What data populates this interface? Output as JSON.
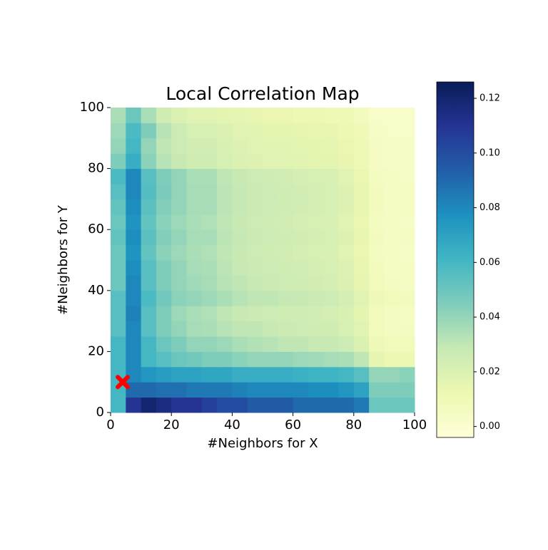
{
  "chart_data": {
    "type": "heatmap",
    "title": "Local Correlation Map",
    "x_label": "#Neighbors for X",
    "y_label": "#Neighbors for Y",
    "xlim": [
      0,
      100
    ],
    "ylim": [
      0,
      100
    ],
    "xticks": [
      0,
      20,
      40,
      60,
      80,
      100
    ],
    "yticks": [
      0,
      20,
      40,
      60,
      80,
      100
    ],
    "xbins": [
      0,
      5,
      10,
      15,
      20,
      25,
      30,
      35,
      40,
      45,
      50,
      55,
      60,
      65,
      70,
      75,
      80,
      85,
      90,
      95,
      100
    ],
    "ybins": [
      0,
      5,
      10,
      15,
      20,
      25,
      30,
      35,
      40,
      45,
      50,
      55,
      60,
      65,
      70,
      75,
      80,
      85,
      90,
      95,
      100
    ],
    "colormap": "YlGnBu",
    "clim": [
      -0.004,
      0.126
    ],
    "cticks": [
      {
        "value": 0,
        "label": "0.00"
      },
      {
        "value": 0.02,
        "label": "0.02"
      },
      {
        "value": 0.04,
        "label": "0.04"
      },
      {
        "value": 0.06,
        "label": "0.06"
      },
      {
        "value": 0.08,
        "label": "0.08"
      },
      {
        "value": 0.1,
        "label": "0.10"
      },
      {
        "value": 0.12,
        "label": "0.12"
      }
    ],
    "z": [
      [
        0.06,
        0.11,
        0.12,
        0.115,
        0.11,
        0.11,
        0.105,
        0.1,
        0.1,
        0.095,
        0.095,
        0.095,
        0.09,
        0.09,
        0.09,
        0.09,
        0.085,
        0.05,
        0.05,
        0.05
      ],
      [
        0.06,
        0.09,
        0.09,
        0.088,
        0.088,
        0.085,
        0.085,
        0.085,
        0.082,
        0.08,
        0.08,
        0.08,
        0.08,
        0.078,
        0.078,
        0.075,
        0.07,
        0.045,
        0.045,
        0.045
      ],
      [
        0.06,
        0.08,
        0.075,
        0.072,
        0.07,
        0.07,
        0.068,
        0.068,
        0.065,
        0.065,
        0.065,
        0.065,
        0.063,
        0.062,
        0.062,
        0.06,
        0.055,
        0.04,
        0.04,
        0.042
      ],
      [
        0.06,
        0.08,
        0.06,
        0.055,
        0.05,
        0.048,
        0.045,
        0.045,
        0.042,
        0.04,
        0.04,
        0.04,
        0.038,
        0.037,
        0.036,
        0.035,
        0.03,
        0.015,
        0.012,
        0.012
      ],
      [
        0.06,
        0.08,
        0.06,
        0.05,
        0.045,
        0.04,
        0.04,
        0.038,
        0.035,
        0.033,
        0.032,
        0.03,
        0.03,
        0.028,
        0.028,
        0.026,
        0.02,
        0.01,
        0.008,
        0.008
      ],
      [
        0.055,
        0.08,
        0.055,
        0.045,
        0.04,
        0.036,
        0.035,
        0.032,
        0.03,
        0.03,
        0.028,
        0.027,
        0.026,
        0.025,
        0.025,
        0.022,
        0.018,
        0.008,
        0.006,
        0.006
      ],
      [
        0.055,
        0.082,
        0.055,
        0.045,
        0.038,
        0.035,
        0.034,
        0.03,
        0.028,
        0.027,
        0.026,
        0.025,
        0.025,
        0.024,
        0.023,
        0.021,
        0.016,
        0.008,
        0.006,
        0.005
      ],
      [
        0.055,
        0.08,
        0.058,
        0.048,
        0.042,
        0.04,
        0.038,
        0.035,
        0.032,
        0.03,
        0.03,
        0.029,
        0.028,
        0.027,
        0.026,
        0.023,
        0.018,
        0.01,
        0.008,
        0.007
      ],
      [
        0.05,
        0.08,
        0.055,
        0.045,
        0.04,
        0.037,
        0.036,
        0.032,
        0.03,
        0.028,
        0.027,
        0.026,
        0.025,
        0.024,
        0.023,
        0.02,
        0.015,
        0.008,
        0.006,
        0.005
      ],
      [
        0.05,
        0.078,
        0.055,
        0.045,
        0.04,
        0.036,
        0.035,
        0.031,
        0.028,
        0.027,
        0.026,
        0.025,
        0.024,
        0.023,
        0.022,
        0.019,
        0.014,
        0.007,
        0.005,
        0.005
      ],
      [
        0.05,
        0.076,
        0.052,
        0.042,
        0.038,
        0.035,
        0.034,
        0.03,
        0.028,
        0.026,
        0.025,
        0.024,
        0.023,
        0.022,
        0.021,
        0.018,
        0.013,
        0.006,
        0.005,
        0.004
      ],
      [
        0.052,
        0.078,
        0.054,
        0.044,
        0.04,
        0.036,
        0.036,
        0.031,
        0.029,
        0.027,
        0.026,
        0.025,
        0.024,
        0.023,
        0.022,
        0.019,
        0.014,
        0.007,
        0.005,
        0.005
      ],
      [
        0.05,
        0.076,
        0.052,
        0.042,
        0.038,
        0.035,
        0.034,
        0.03,
        0.028,
        0.026,
        0.025,
        0.024,
        0.023,
        0.022,
        0.021,
        0.018,
        0.013,
        0.006,
        0.005,
        0.004
      ],
      [
        0.052,
        0.078,
        0.054,
        0.044,
        0.04,
        0.036,
        0.036,
        0.031,
        0.029,
        0.027,
        0.026,
        0.025,
        0.024,
        0.023,
        0.022,
        0.019,
        0.014,
        0.007,
        0.005,
        0.005
      ],
      [
        0.055,
        0.08,
        0.056,
        0.046,
        0.04,
        0.036,
        0.036,
        0.031,
        0.029,
        0.027,
        0.026,
        0.025,
        0.024,
        0.023,
        0.022,
        0.019,
        0.014,
        0.007,
        0.005,
        0.005
      ],
      [
        0.058,
        0.08,
        0.055,
        0.045,
        0.04,
        0.035,
        0.035,
        0.03,
        0.028,
        0.026,
        0.025,
        0.024,
        0.023,
        0.022,
        0.021,
        0.018,
        0.013,
        0.006,
        0.005,
        0.004
      ],
      [
        0.045,
        0.065,
        0.042,
        0.032,
        0.028,
        0.025,
        0.025,
        0.022,
        0.02,
        0.019,
        0.018,
        0.018,
        0.017,
        0.016,
        0.016,
        0.014,
        0.01,
        0.005,
        0.004,
        0.004
      ],
      [
        0.04,
        0.06,
        0.04,
        0.03,
        0.026,
        0.024,
        0.024,
        0.021,
        0.019,
        0.018,
        0.017,
        0.017,
        0.016,
        0.016,
        0.015,
        0.013,
        0.01,
        0.005,
        0.004,
        0.004
      ],
      [
        0.038,
        0.058,
        0.045,
        0.032,
        0.026,
        0.022,
        0.022,
        0.02,
        0.018,
        0.017,
        0.016,
        0.016,
        0.015,
        0.014,
        0.014,
        0.012,
        0.009,
        0.004,
        0.003,
        0.003
      ],
      [
        0.035,
        0.05,
        0.035,
        0.025,
        0.02,
        0.018,
        0.018,
        0.016,
        0.015,
        0.014,
        0.013,
        0.013,
        0.012,
        0.012,
        0.011,
        0.01,
        0.007,
        0.003,
        0.002,
        0.002
      ]
    ],
    "marker": {
      "x": 4,
      "y": 10,
      "color": "#ff0000"
    }
  }
}
